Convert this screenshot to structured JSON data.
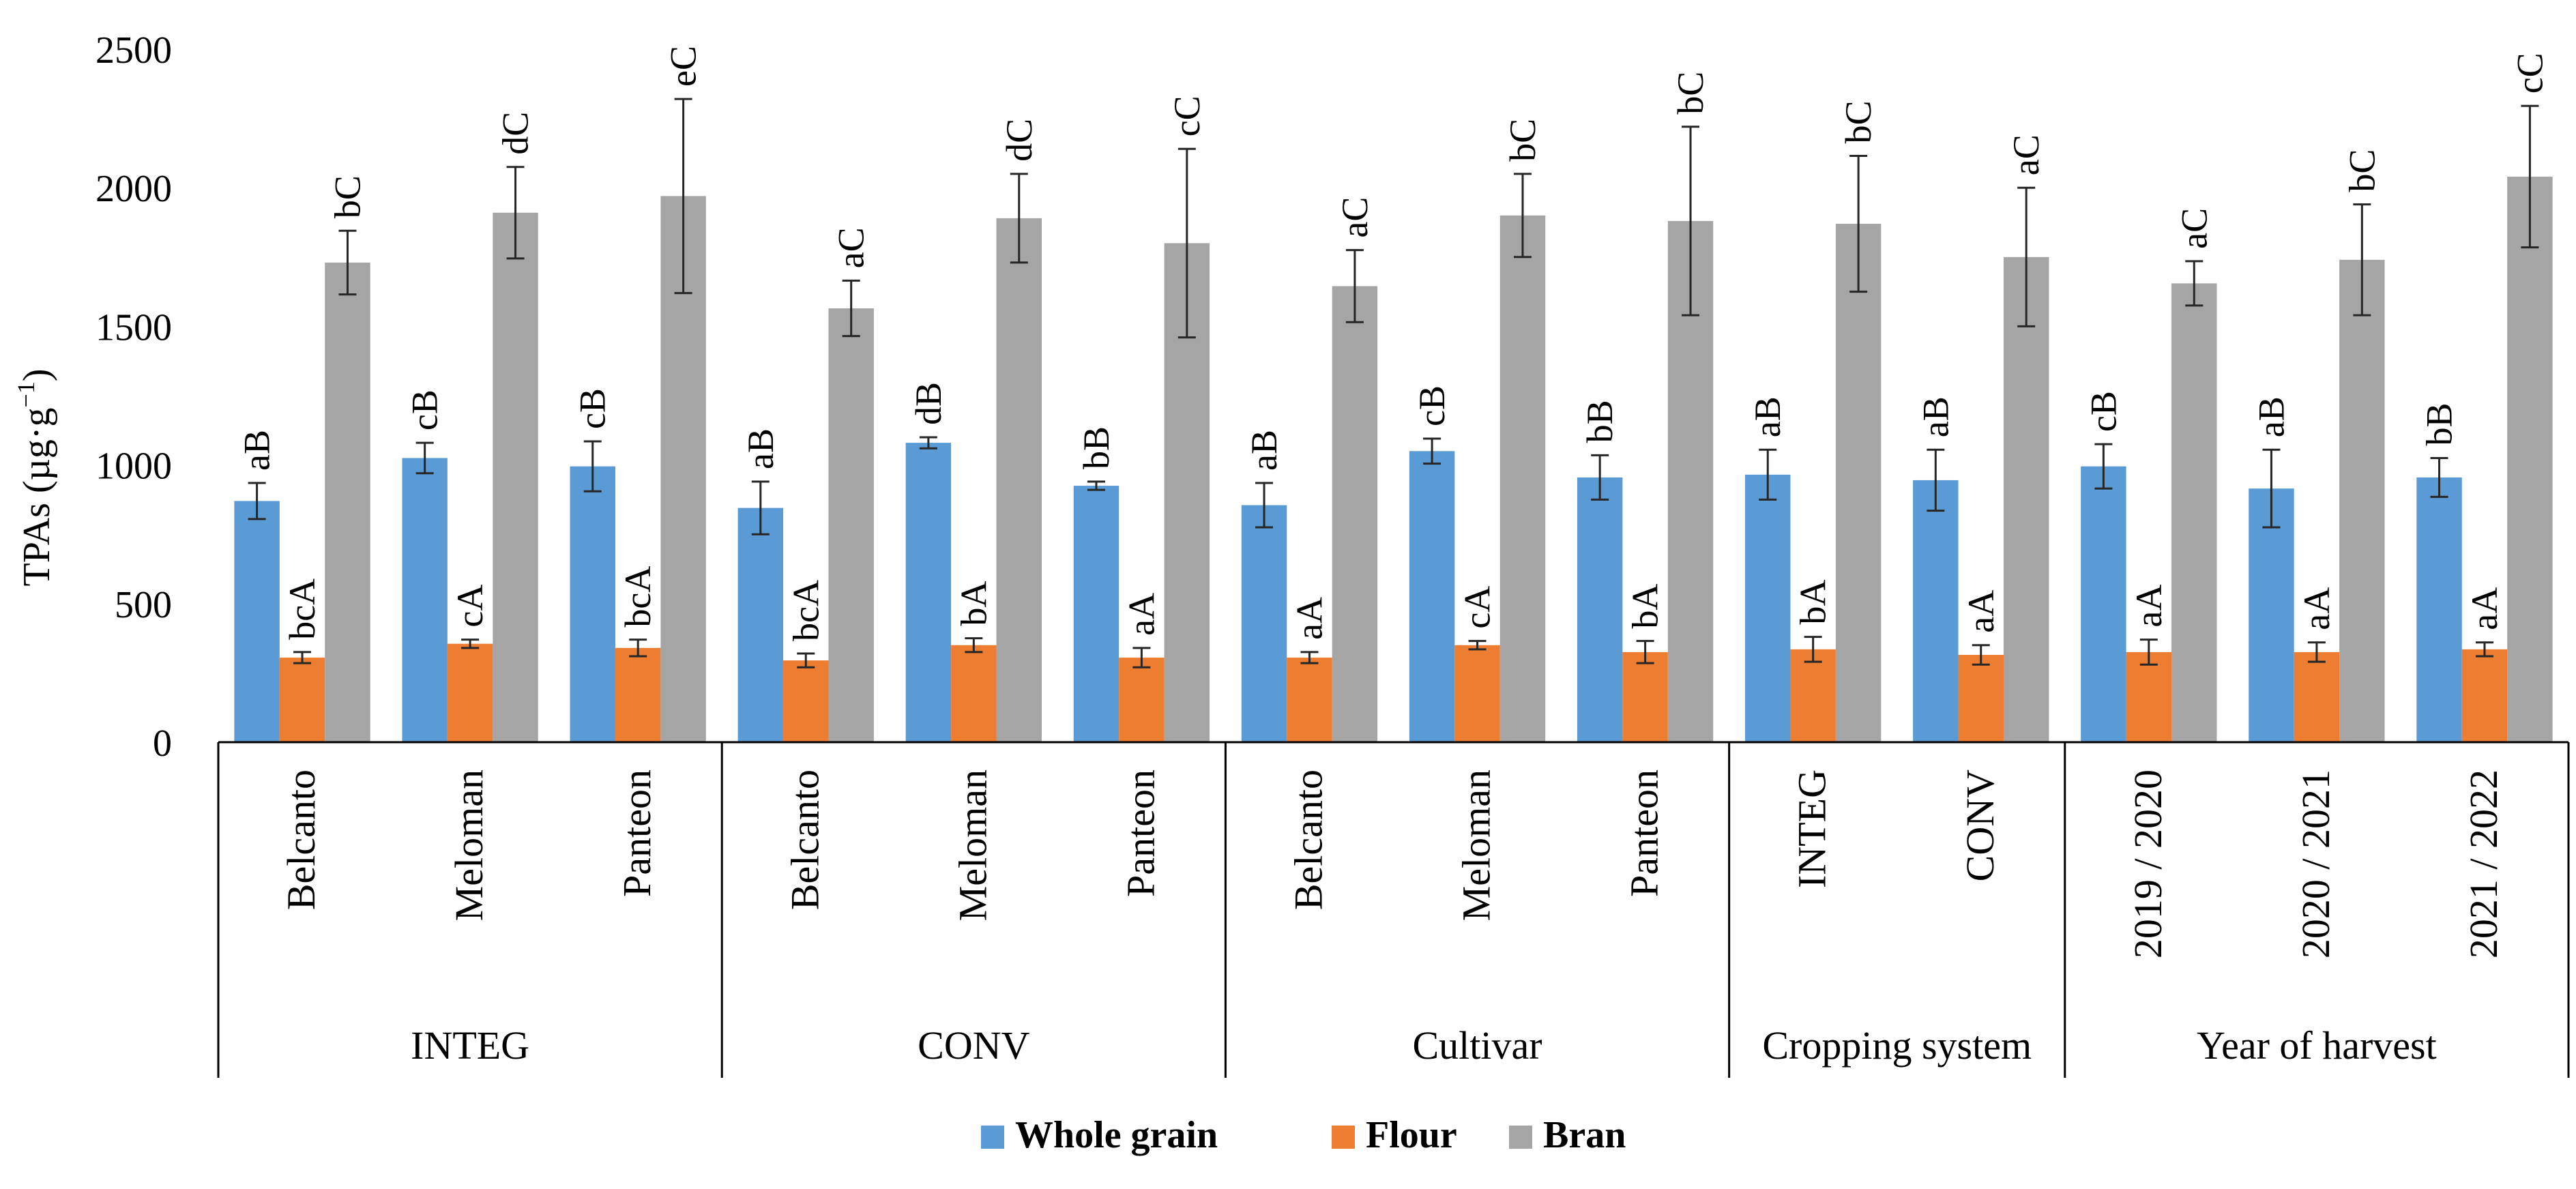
{
  "chart_data": {
    "type": "bar",
    "ylabel_main": "TPAs (µg·g",
    "ylabel_sup": "−1",
    "ylabel_close": ")",
    "ylim": [
      0,
      2500
    ],
    "yticks": [
      0,
      500,
      1000,
      1500,
      2000,
      2500
    ],
    "groups": [
      {
        "label": "INTEG",
        "categories": [
          "Belcanto",
          "Meloman",
          "Panteon"
        ]
      },
      {
        "label": "CONV",
        "categories": [
          "Belcanto",
          "Meloman",
          "Panteon"
        ]
      },
      {
        "label": "Cultivar",
        "categories": [
          "Belcanto",
          "Meloman",
          "Panteon"
        ]
      },
      {
        "label": "Cropping system",
        "categories": [
          "INTEG",
          "CONV"
        ]
      },
      {
        "label": "Year of harvest",
        "categories": [
          "2019 / 2020",
          "2020 / 2021",
          "2021 / 2022"
        ]
      }
    ],
    "series": [
      {
        "name": "Whole grain",
        "color": "#5b9bd5",
        "values": [
          870,
          1025,
          995,
          845,
          1080,
          925,
          855,
          1050,
          955,
          965,
          945,
          995,
          915,
          955
        ],
        "errors": [
          65,
          55,
          90,
          95,
          20,
          15,
          80,
          45,
          80,
          90,
          110,
          80,
          140,
          70
        ],
        "labels": [
          "aB",
          "cB",
          "cB",
          "aB",
          "dB",
          "bB",
          "aB",
          "cB",
          "bB",
          "aB",
          "aB",
          "cB",
          "aB",
          "bB"
        ]
      },
      {
        "name": "Flour",
        "color": "#ed7d31",
        "values": [
          305,
          355,
          340,
          295,
          350,
          305,
          305,
          350,
          325,
          335,
          315,
          325,
          325,
          335
        ],
        "errors": [
          20,
          15,
          30,
          25,
          25,
          35,
          20,
          15,
          40,
          45,
          35,
          45,
          35,
          25
        ],
        "labels": [
          "bcA",
          "cA",
          "bcA",
          "bcA",
          "bA",
          "aA",
          "aA",
          "cA",
          "bA",
          "bA",
          "aA",
          "aA",
          "aA",
          "aA"
        ]
      },
      {
        "name": "Bran",
        "color": "#a5a5a5",
        "values": [
          1730,
          1910,
          1970,
          1565,
          1890,
          1800,
          1645,
          1900,
          1880,
          1870,
          1750,
          1655,
          1740,
          2040
        ],
        "errors": [
          115,
          165,
          350,
          100,
          160,
          340,
          130,
          150,
          340,
          245,
          250,
          80,
          200,
          255
        ],
        "labels": [
          "bC",
          "dC",
          "eC",
          "aC",
          "dC",
          "cC",
          "aC",
          "bC",
          "bC",
          "bC",
          "aC",
          "aC",
          "bC",
          "cC"
        ]
      }
    ]
  }
}
